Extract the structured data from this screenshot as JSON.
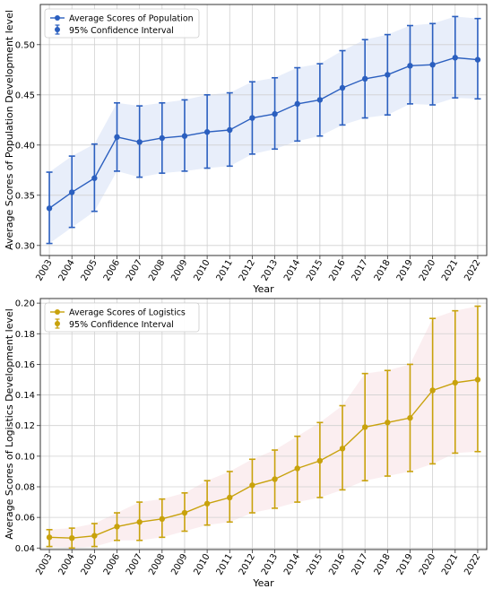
{
  "chart_data": [
    {
      "type": "line",
      "xlabel": "Year",
      "ylabel": "Average Scores of Population Development level",
      "ylim": [
        0.29,
        0.54
      ],
      "yticks": [
        "0.30",
        "0.35",
        "0.40",
        "0.45",
        "0.50"
      ],
      "x": [
        "2003",
        "2004",
        "2005",
        "2006",
        "2007",
        "2008",
        "2009",
        "2010",
        "2011",
        "2012",
        "2013",
        "2014",
        "2015",
        "2016",
        "2017",
        "2018",
        "2019",
        "2020",
        "2021",
        "2022"
      ],
      "series": [
        {
          "name": "Average Scores of Population",
          "values": [
            0.337,
            0.353,
            0.367,
            0.408,
            0.403,
            0.407,
            0.409,
            0.413,
            0.415,
            0.427,
            0.431,
            0.441,
            0.445,
            0.457,
            0.466,
            0.47,
            0.479,
            0.48,
            0.487,
            0.485
          ],
          "ci_low": [
            0.302,
            0.318,
            0.334,
            0.374,
            0.368,
            0.372,
            0.374,
            0.377,
            0.379,
            0.391,
            0.396,
            0.404,
            0.409,
            0.42,
            0.427,
            0.43,
            0.441,
            0.44,
            0.447,
            0.446
          ],
          "ci_high": [
            0.373,
            0.389,
            0.401,
            0.442,
            0.439,
            0.442,
            0.445,
            0.45,
            0.452,
            0.463,
            0.467,
            0.477,
            0.481,
            0.494,
            0.505,
            0.51,
            0.519,
            0.521,
            0.528,
            0.526
          ]
        }
      ],
      "error_label": "95% Confidence Interval",
      "color": "#2b5fbf",
      "shade": "#e8eefa",
      "grid": true,
      "legend": "top-left"
    },
    {
      "type": "line",
      "xlabel": "Year",
      "ylabel": "Average Scores of Logistics Development level",
      "ylim": [
        0.039,
        0.203
      ],
      "yticks": [
        "0.04",
        "0.06",
        "0.08",
        "0.10",
        "0.12",
        "0.14",
        "0.16",
        "0.18",
        "0.20"
      ],
      "x": [
        "2003",
        "2004",
        "2005",
        "2006",
        "2007",
        "2008",
        "2009",
        "2010",
        "2011",
        "2012",
        "2013",
        "2014",
        "2015",
        "2016",
        "2017",
        "2018",
        "2019",
        "2020",
        "2021",
        "2022"
      ],
      "series": [
        {
          "name": "Average Scores of Logistics",
          "values": [
            0.047,
            0.0465,
            0.048,
            0.054,
            0.057,
            0.059,
            0.063,
            0.069,
            0.073,
            0.081,
            0.085,
            0.092,
            0.097,
            0.105,
            0.119,
            0.122,
            0.125,
            0.143,
            0.148,
            0.15
          ],
          "ci_low": [
            0.041,
            0.04,
            0.041,
            0.045,
            0.045,
            0.047,
            0.051,
            0.055,
            0.057,
            0.063,
            0.066,
            0.07,
            0.073,
            0.078,
            0.084,
            0.087,
            0.09,
            0.095,
            0.102,
            0.103
          ],
          "ci_high": [
            0.052,
            0.053,
            0.056,
            0.063,
            0.07,
            0.072,
            0.076,
            0.084,
            0.09,
            0.098,
            0.104,
            0.113,
            0.122,
            0.133,
            0.154,
            0.156,
            0.16,
            0.19,
            0.195,
            0.198
          ]
        }
      ],
      "error_label": "95% Confidence Interval",
      "color": "#c8a20c",
      "shade": "#fbeef0",
      "grid": true,
      "legend": "top-left"
    }
  ]
}
